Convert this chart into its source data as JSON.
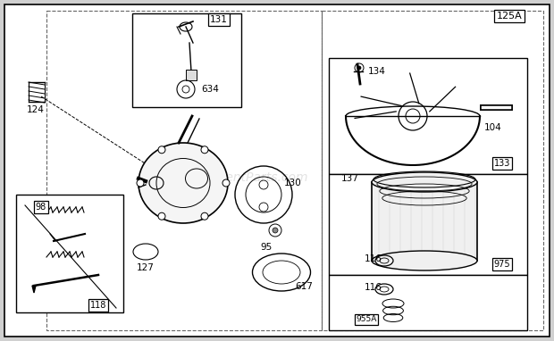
{
  "fig_w": 6.2,
  "fig_h": 3.82,
  "dpi": 100,
  "bg": "#ffffff",
  "outer_bg": "#d0d0d0",
  "page_label": "125A",
  "watermark": "eReplacementParts.com"
}
